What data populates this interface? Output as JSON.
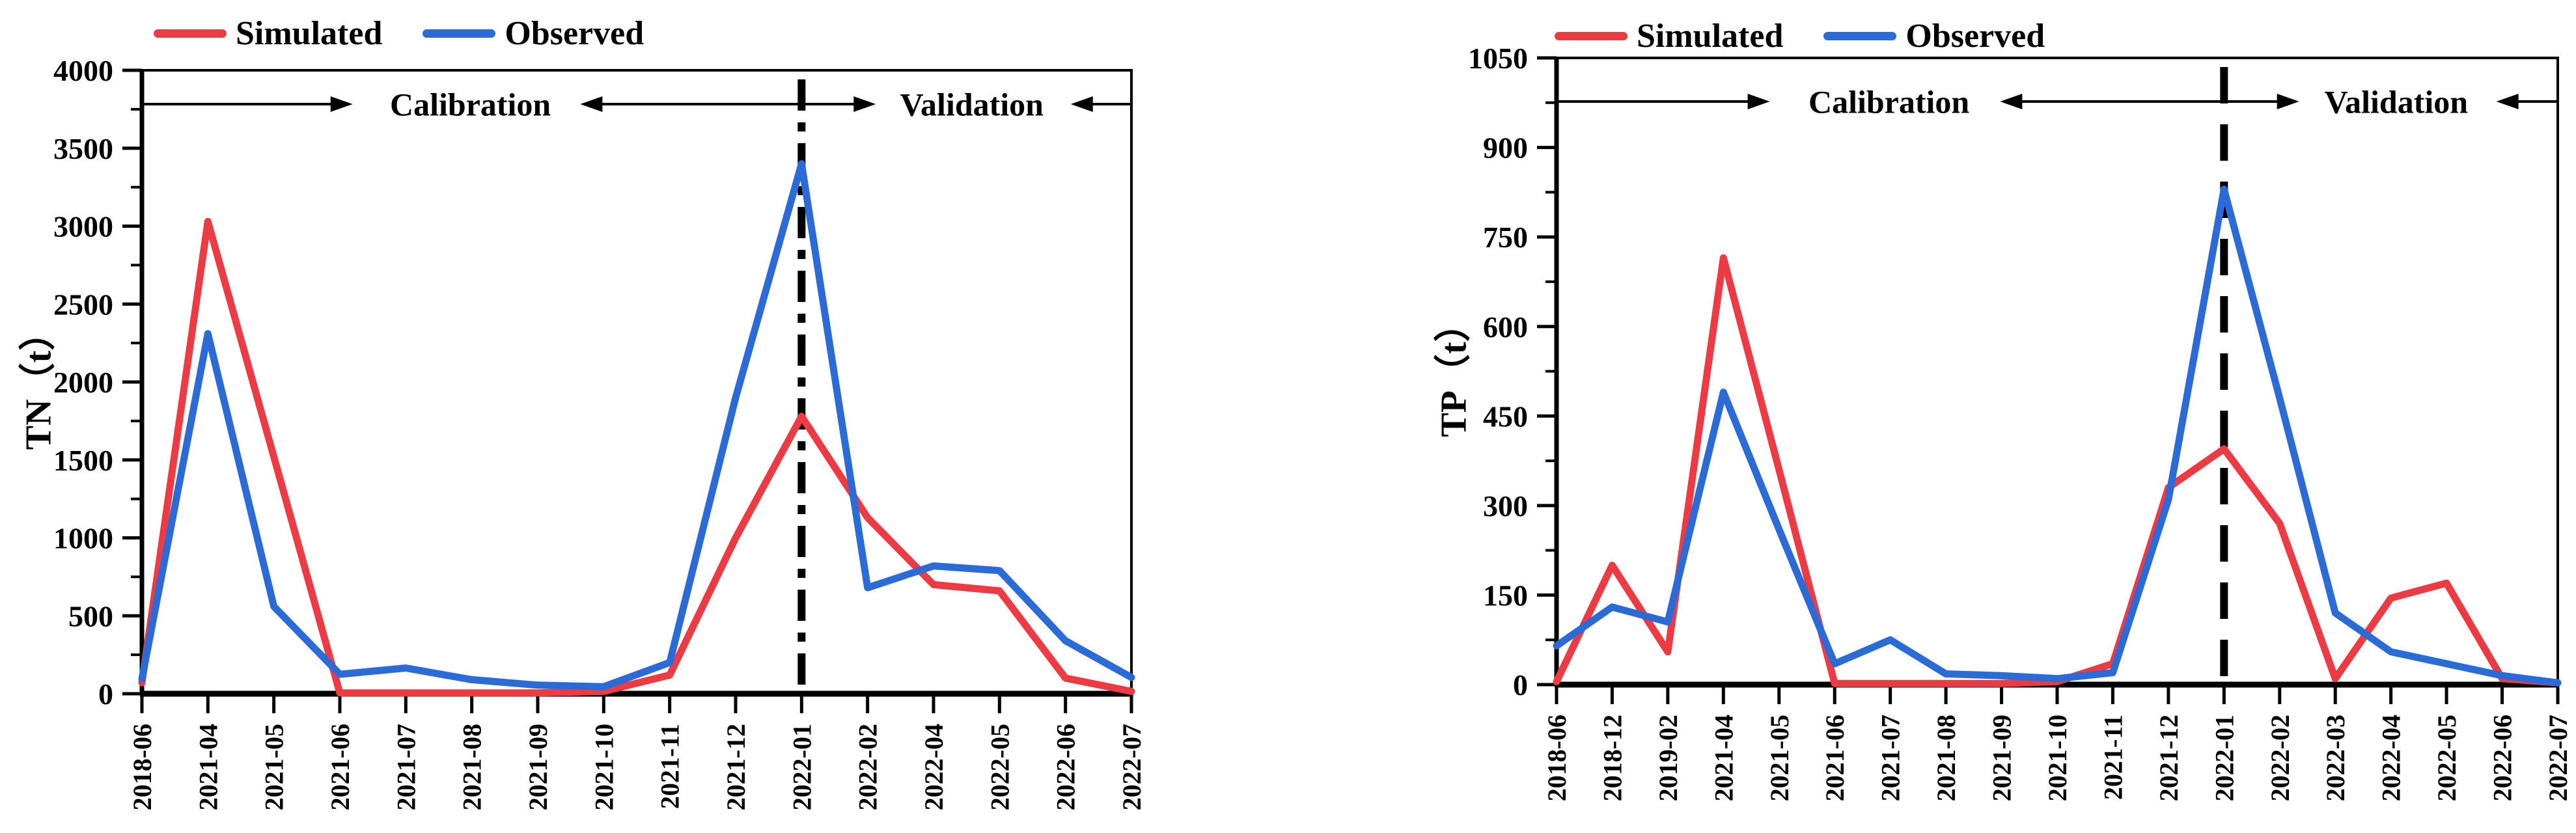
{
  "figure": {
    "legend": {
      "simulated_label": "Simulated",
      "observed_label": "Observed"
    },
    "colors": {
      "simulated": "#ee3b43",
      "observed": "#2b6bd8",
      "axis": "#000000",
      "divider": "#000000",
      "background": "#ffffff"
    }
  },
  "chart_data": [
    {
      "type": "line",
      "title": "",
      "xlabel": "",
      "ylabel": "TN（t）",
      "ylim": [
        0,
        4000
      ],
      "yticks": [
        0,
        500,
        1000,
        1500,
        2000,
        2500,
        3000,
        3500,
        4000
      ],
      "grid": false,
      "legend_position": "top-left",
      "categories": [
        "2018-06",
        "2021-04",
        "2021-05",
        "2021-06",
        "2021-07",
        "2021-08",
        "2021-09",
        "2021-10",
        "2021-11",
        "2021-12",
        "2022-01",
        "2022-02",
        "2022-04",
        "2022-05",
        "2022-06",
        "2022-07"
      ],
      "series": [
        {
          "name": "Simulated",
          "color": "#ee3b43",
          "values": [
            70,
            3030,
            1520,
            5,
            5,
            5,
            5,
            15,
            120,
            1000,
            1780,
            1130,
            700,
            660,
            100,
            15
          ]
        },
        {
          "name": "Observed",
          "color": "#2b6bd8",
          "values": [
            95,
            2310,
            560,
            125,
            165,
            90,
            55,
            45,
            200,
            1900,
            3400,
            680,
            820,
            790,
            340,
            105
          ]
        }
      ],
      "divider_at": "2022-01",
      "divider_style": "dash-dot",
      "region_labels": {
        "left": "Calibration",
        "right": "Validation"
      }
    },
    {
      "type": "line",
      "title": "",
      "xlabel": "",
      "ylabel": "TP（t）",
      "ylim": [
        0,
        1050
      ],
      "yticks": [
        0,
        150,
        300,
        450,
        600,
        750,
        900,
        1050
      ],
      "grid": false,
      "legend_position": "top-left",
      "categories": [
        "2018-06",
        "2018-12",
        "2019-02",
        "2021-04",
        "2021-05",
        "2021-06",
        "2021-07",
        "2021-08",
        "2021-09",
        "2021-10",
        "2021-11",
        "2021-12",
        "2022-01",
        "2022-02",
        "2022-03",
        "2022-04",
        "2022-05",
        "2022-06",
        "2022-07"
      ],
      "series": [
        {
          "name": "Simulated",
          "color": "#ee3b43",
          "values": [
            5,
            200,
            55,
            715,
            360,
            2,
            2,
            2,
            2,
            5,
            35,
            330,
            395,
            270,
            10,
            145,
            170,
            10,
            3
          ]
        },
        {
          "name": "Observed",
          "color": "#2b6bd8",
          "values": [
            65,
            130,
            105,
            490,
            260,
            35,
            75,
            18,
            15,
            10,
            20,
            310,
            830,
            480,
            120,
            55,
            35,
            15,
            3
          ]
        }
      ],
      "divider_at": "2022-01",
      "divider_style": "dashed",
      "region_labels": {
        "left": "Calibration",
        "right": "Validation"
      }
    }
  ]
}
